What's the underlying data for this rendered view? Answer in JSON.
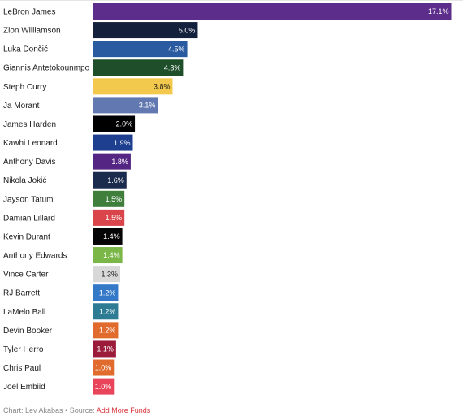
{
  "chart_data": {
    "type": "bar",
    "orientation": "horizontal",
    "categories": [
      "LeBron James",
      "Zion Williamson",
      "Luka Dončić",
      "Giannis Antetokounmpo",
      "Steph Curry",
      "Ja Morant",
      "James Harden",
      "Kawhi Leonard",
      "Anthony Davis",
      "Nikola Jokić",
      "Jayson Tatum",
      "Damian Lillard",
      "Kevin Durant",
      "Anthony Edwards",
      "Vince Carter",
      "RJ Barrett",
      "LaMelo Ball",
      "Devin Booker",
      "Tyler Herro",
      "Chris Paul",
      "Joel Embiid"
    ],
    "values": [
      17.1,
      5.0,
      4.5,
      4.3,
      3.8,
      3.1,
      2.0,
      1.9,
      1.8,
      1.6,
      1.5,
      1.5,
      1.4,
      1.4,
      1.3,
      1.2,
      1.2,
      1.2,
      1.1,
      1.0,
      1.0
    ],
    "value_labels": [
      "17.1%",
      "5.0%",
      "4.5%",
      "4.3%",
      "3.8%",
      "3.1%",
      "2.0%",
      "1.9%",
      "1.8%",
      "1.6%",
      "1.5%",
      "1.5%",
      "1.4%",
      "1.4%",
      "1.3%",
      "1.2%",
      "1.2%",
      "1.2%",
      "1.1%",
      "1.0%",
      "1.0%"
    ],
    "colors": [
      "#5c2d8a",
      "#14213d",
      "#2a5aa0",
      "#1f4f2a",
      "#f2c94c",
      "#6278b0",
      "#000000",
      "#1e3f8f",
      "#552583",
      "#1b2b4d",
      "#3f7e3b",
      "#d9454a",
      "#050505",
      "#7ab648",
      "#d8d8d8",
      "#3478c8",
      "#2e7c94",
      "#e06b2c",
      "#9b1b3b",
      "#e06b2c",
      "#e8445a"
    ],
    "value_label_colors": [
      "#ffffff",
      "#ffffff",
      "#ffffff",
      "#ffffff",
      "#1a1a1a",
      "#ffffff",
      "#ffffff",
      "#ffffff",
      "#ffffff",
      "#ffffff",
      "#ffffff",
      "#ffffff",
      "#ffffff",
      "#ffffff",
      "#1a1a1a",
      "#ffffff",
      "#ffffff",
      "#ffffff",
      "#ffffff",
      "#ffffff",
      "#ffffff"
    ],
    "xlim": [
      0,
      17.1
    ],
    "grid": false,
    "legend": "none",
    "title": "",
    "xlabel": "",
    "ylabel": ""
  },
  "footer": {
    "prefix": "Chart: Lev Akabas • Source: ",
    "link": "Add More Funds"
  }
}
